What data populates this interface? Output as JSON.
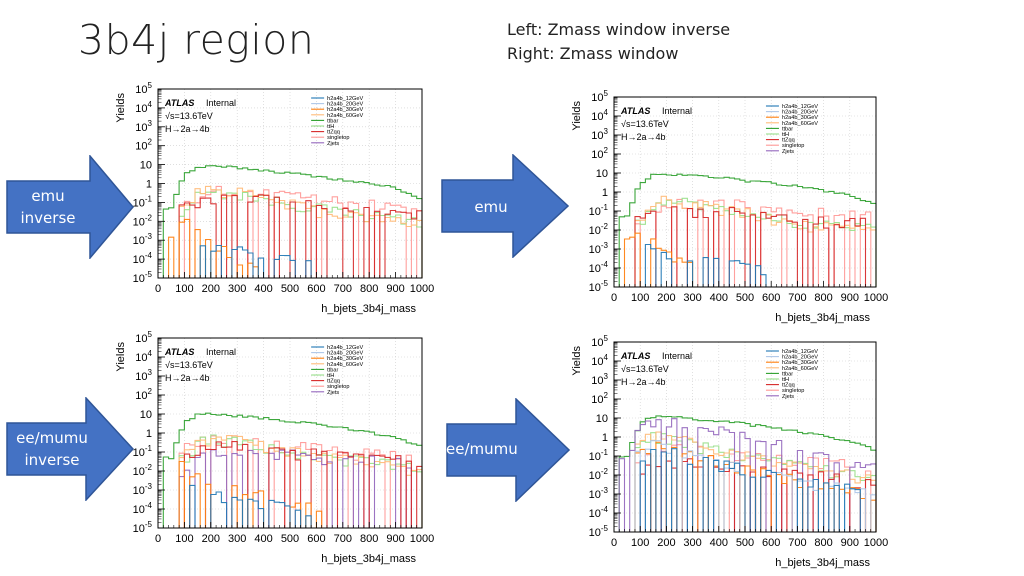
{
  "slide": {
    "title": "3b4j region",
    "note_line1": "Left: Zmass window inverse",
    "note_line2": "Right: Zmass window"
  },
  "arrows": [
    {
      "line1": "emu",
      "line2": "inverse"
    },
    {
      "line1": "emu",
      "line2": ""
    },
    {
      "line1": "ee/mumu",
      "line2": "inverse"
    },
    {
      "line1": "ee/mumu",
      "line2": ""
    }
  ],
  "colors": {
    "arrow_fill": "#4472c4",
    "arrow_stroke": "#2f5597",
    "h2a4b_12GeV": "#1f77b4",
    "h2a4b_20GeV": "#aec7e8",
    "h2a4b_30GeV": "#ff7f0e",
    "h2a4b_60GeV": "#ffbb78",
    "ttbar": "#2ca02c",
    "ttH": "#98df8a",
    "ttZqq": "#d62728",
    "singletop": "#ff9896",
    "Zjets": "#9467bd"
  },
  "chart_data": [
    {
      "type": "line",
      "panel": "top-left",
      "xlabel": "h_bjets_3b4j_mass",
      "ylabel": "Yields",
      "xlim": [
        0,
        1000
      ],
      "ylim": [
        1e-05,
        100000
      ],
      "log_y": true,
      "x_ticks": [
        "0",
        "100",
        "200",
        "300",
        "400",
        "500",
        "600",
        "700",
        "800",
        "900",
        "1000"
      ],
      "y_ticks": [
        "10^{-5}",
        "10^{-4}",
        "10^{-3}",
        "10^{-2}",
        "10^{-1}",
        "1",
        "10",
        "10^{2}",
        "10^{3}",
        "10^{4}",
        "10^{5}"
      ],
      "atlas_label": "ATLAS",
      "atlas_tag": "Internal",
      "energy": "√s=13.6TeV",
      "process": "H→2a→4b",
      "legend_position": "top-right",
      "legend": [
        "h2a4b_12GeV",
        "h2a4b_20GeV",
        "h2a4b_30GeV",
        "h2a4b_60GeV",
        "ttbar",
        "ttH",
        "ttZqq",
        "singletop",
        "Zjets"
      ],
      "series": [
        {
          "name": "ttbar",
          "x": [
            50,
            100,
            150,
            200,
            300,
            400,
            500,
            600,
            700,
            800,
            900,
            1000
          ],
          "y": [
            0.05,
            3,
            7,
            8,
            7,
            5,
            3.5,
            2.5,
            1.5,
            1.0,
            0.6,
            0.15
          ]
        },
        {
          "name": "h2a4b_60GeV",
          "x": [
            100,
            150,
            200,
            300,
            400,
            500,
            600,
            700,
            800,
            900,
            1000
          ],
          "y": [
            0.05,
            0.3,
            0.5,
            0.4,
            0.15,
            0.08,
            0.04,
            0.02,
            0.015,
            0.01,
            0.008
          ]
        },
        {
          "name": "ttH",
          "x": [
            100,
            150,
            200,
            300,
            400,
            500,
            600,
            700,
            800,
            900,
            1000
          ],
          "y": [
            0.03,
            0.2,
            0.4,
            0.3,
            0.15,
            0.08,
            0.05,
            0.03,
            0.02,
            0.015,
            0.01
          ]
        },
        {
          "name": "ttZqq",
          "x": [
            100,
            200,
            300,
            400,
            500,
            600,
            700,
            800,
            900,
            1000
          ],
          "y": [
            0.05,
            0.2,
            0.2,
            0.15,
            0.1,
            0.06,
            0.05,
            0.04,
            0.03,
            0.02
          ]
        },
        {
          "name": "singletop",
          "x": [
            100,
            200,
            300,
            400,
            500,
            600,
            700,
            800,
            900,
            1000
          ],
          "y": [
            0.1,
            0.4,
            0.4,
            0.3,
            0.2,
            0.15,
            0.1,
            0.08,
            0.06,
            0.05
          ]
        },
        {
          "name": "h2a4b_30GeV",
          "x": [
            60,
            100,
            150,
            200,
            250,
            300,
            350
          ],
          "y": [
            0.002,
            0.01,
            0.003,
            0.001,
            0.0003,
            0.0001,
            5e-05
          ]
        },
        {
          "name": "h2a4b_12GeV",
          "x": [
            150,
            250,
            350,
            450,
            550
          ],
          "y": [
            0.0005,
            0.0005,
            0.0002,
            0.0001,
            0.0001
          ]
        }
      ]
    },
    {
      "type": "line",
      "panel": "top-right",
      "xlabel": "h_bjets_3b4j_mass",
      "ylabel": "Yields",
      "xlim": [
        0,
        1000
      ],
      "ylim": [
        1e-05,
        100000
      ],
      "log_y": true,
      "x_ticks": [
        "0",
        "100",
        "200",
        "300",
        "400",
        "500",
        "600",
        "700",
        "800",
        "900",
        "1000"
      ],
      "y_ticks": [
        "10^{-5}",
        "10^{-4}",
        "10^{-3}",
        "10^{-2}",
        "10^{-1}",
        "1",
        "10",
        "10^{2}",
        "10^{3}",
        "10^{4}",
        "10^{5}"
      ],
      "atlas_label": "ATLAS",
      "atlas_tag": "Internal",
      "energy": "√s=13.6TeV",
      "process": "H→2a→4b",
      "legend_position": "top-right",
      "legend": [
        "h2a4b_12GeV",
        "h2a4b_20GeV",
        "h2a4b_30GeV",
        "h2a4b_60GeV",
        "ttbar",
        "ttH",
        "ttZqq",
        "singletop",
        "Zjets"
      ],
      "series": [
        {
          "name": "ttbar",
          "x": [
            50,
            100,
            150,
            200,
            300,
            400,
            500,
            600,
            700,
            800,
            900,
            1000
          ],
          "y": [
            0.05,
            3,
            8,
            9,
            8,
            6,
            4,
            3,
            2,
            1.2,
            0.7,
            0.2
          ]
        },
        {
          "name": "h2a4b_60GeV",
          "x": [
            100,
            150,
            200,
            300,
            400,
            500,
            600,
            700,
            800,
            900,
            1000
          ],
          "y": [
            0.02,
            0.2,
            0.4,
            0.3,
            0.15,
            0.08,
            0.04,
            0.02,
            0.015,
            0.01,
            0.008
          ]
        },
        {
          "name": "ttH",
          "x": [
            100,
            150,
            200,
            300,
            400,
            500,
            600,
            700,
            800,
            900,
            1000
          ],
          "y": [
            0.02,
            0.15,
            0.3,
            0.25,
            0.12,
            0.07,
            0.04,
            0.03,
            0.02,
            0.015,
            0.01
          ]
        },
        {
          "name": "ttZqq",
          "x": [
            100,
            200,
            300,
            400,
            500,
            600,
            700,
            800,
            900,
            1000
          ],
          "y": [
            0.03,
            0.1,
            0.1,
            0.1,
            0.08,
            0.05,
            0.04,
            0.03,
            0.03,
            0.02
          ]
        },
        {
          "name": "singletop",
          "x": [
            100,
            200,
            300,
            400,
            500,
            600,
            700,
            800,
            900,
            1000
          ],
          "y": [
            0.05,
            0.3,
            0.3,
            0.25,
            0.2,
            0.15,
            0.1,
            0.08,
            0.06,
            0.05
          ]
        },
        {
          "name": "h2a4b_30GeV",
          "x": [
            60,
            100,
            150,
            200,
            250,
            300
          ],
          "y": [
            0.002,
            0.01,
            0.002,
            0.0005,
            0.0002,
            0.0001
          ]
        },
        {
          "name": "h2a4b_12GeV",
          "x": [
            150,
            300,
            450,
            550
          ],
          "y": [
            0.001,
            0.0003,
            0.0002,
            0.0001
          ]
        }
      ]
    },
    {
      "type": "line",
      "panel": "bottom-left",
      "xlabel": "h_bjets_3b4j_mass",
      "ylabel": "Yields",
      "xlim": [
        0,
        1000
      ],
      "ylim": [
        1e-05,
        100000
      ],
      "log_y": true,
      "x_ticks": [
        "0",
        "100",
        "200",
        "300",
        "400",
        "500",
        "600",
        "700",
        "800",
        "900",
        "1000"
      ],
      "y_ticks": [
        "10^{-5}",
        "10^{-4}",
        "10^{-3}",
        "10^{-2}",
        "10^{-1}",
        "1",
        "10",
        "10^{2}",
        "10^{3}",
        "10^{4}",
        "10^{5}"
      ],
      "atlas_label": "ATLAS",
      "atlas_tag": "Internal",
      "energy": "√s=13.6TeV",
      "process": "H→2a→4b",
      "legend_position": "top-right",
      "legend": [
        "h2a4b_12GeV",
        "h2a4b_20GeV",
        "h2a4b_30GeV",
        "h2a4b_60GeV",
        "ttbar",
        "ttH",
        "ttZqq",
        "singletop",
        "Zjets"
      ],
      "series": [
        {
          "name": "ttbar",
          "x": [
            50,
            100,
            150,
            200,
            300,
            400,
            500,
            600,
            700,
            800,
            900,
            1000
          ],
          "y": [
            0.05,
            4,
            9,
            10,
            8,
            6,
            4,
            3,
            1.8,
            1.1,
            0.6,
            0.2
          ]
        },
        {
          "name": "h2a4b_60GeV",
          "x": [
            100,
            150,
            200,
            300,
            400,
            500,
            600,
            700,
            800,
            900,
            1000
          ],
          "y": [
            0.1,
            0.3,
            0.5,
            0.4,
            0.2,
            0.1,
            0.06,
            0.04,
            0.03,
            0.02,
            0.01
          ]
        },
        {
          "name": "ttH",
          "x": [
            100,
            150,
            200,
            300,
            400,
            500,
            600,
            700,
            800,
            900,
            1000
          ],
          "y": [
            0.05,
            0.3,
            0.5,
            0.4,
            0.2,
            0.1,
            0.06,
            0.04,
            0.03,
            0.02,
            0.01
          ]
        },
        {
          "name": "Zjets",
          "x": [
            100,
            200,
            300,
            400,
            500,
            600,
            700,
            800,
            900,
            1000
          ],
          "y": [
            0.01,
            0.1,
            0.05,
            0.1,
            0.08,
            0.05,
            0.05,
            0.04,
            0.03,
            0.01
          ]
        },
        {
          "name": "ttZqq",
          "x": [
            100,
            200,
            300,
            400,
            500,
            600,
            700,
            800,
            900,
            1000
          ],
          "y": [
            0.05,
            0.2,
            0.2,
            0.15,
            0.1,
            0.08,
            0.06,
            0.05,
            0.04,
            0.03
          ]
        },
        {
          "name": "singletop",
          "x": [
            100,
            200,
            300,
            400,
            500,
            600,
            700,
            800,
            900,
            1000
          ],
          "y": [
            0.2,
            0.5,
            0.4,
            0.3,
            0.2,
            0.15,
            0.1,
            0.08,
            0.06,
            0.05
          ]
        },
        {
          "name": "h2a4b_30GeV",
          "x": [
            100,
            150,
            200,
            300,
            400,
            500,
            600
          ],
          "y": [
            0.02,
            0.005,
            0.002,
            0.001,
            0.0005,
            0.0003,
            0.0001
          ]
        },
        {
          "name": "h2a4b_12GeV",
          "x": [
            150,
            250,
            350,
            450,
            550
          ],
          "y": [
            0.001,
            0.0005,
            0.0003,
            0.0002,
            0.0001
          ]
        }
      ]
    },
    {
      "type": "line",
      "panel": "bottom-right",
      "xlabel": "h_bjets_3b4j_mass",
      "ylabel": "Yields",
      "xlim": [
        0,
        1000
      ],
      "ylim": [
        1e-05,
        100000
      ],
      "log_y": true,
      "x_ticks": [
        "0",
        "100",
        "200",
        "300",
        "400",
        "500",
        "600",
        "700",
        "800",
        "900",
        "1000"
      ],
      "y_ticks": [
        "10^{-5}",
        "10^{-4}",
        "10^{-3}",
        "10^{-2}",
        "10^{-1}",
        "1",
        "10",
        "10^{2}",
        "10^{3}",
        "10^{4}",
        "10^{5}"
      ],
      "atlas_label": "ATLAS",
      "atlas_tag": "Internal",
      "energy": "√s=13.6TeV",
      "process": "H→2a→4b",
      "legend_position": "top-right",
      "legend": [
        "h2a4b_12GeV",
        "h2a4b_20GeV",
        "h2a4b_30GeV",
        "h2a4b_60GeV",
        "ttbar",
        "ttH",
        "ttZqq",
        "singletop",
        "Zjets"
      ],
      "series": [
        {
          "name": "ttbar",
          "x": [
            50,
            100,
            150,
            200,
            300,
            400,
            500,
            600,
            700,
            800,
            900,
            1000
          ],
          "y": [
            0.1,
            5,
            12,
            12,
            9,
            7,
            5,
            3,
            2,
            1.2,
            0.6,
            0.2
          ]
        },
        {
          "name": "Zjets",
          "x": [
            50,
            100,
            150,
            200,
            300,
            400,
            500,
            600,
            700,
            800,
            900,
            1000
          ],
          "y": [
            0.1,
            3,
            7,
            6,
            4,
            2,
            1,
            0.5,
            0.3,
            0.1,
            0.05,
            0.02
          ]
        },
        {
          "name": "h2a4b_60GeV",
          "x": [
            100,
            150,
            200,
            300,
            400,
            500,
            600,
            700,
            800,
            900,
            1000
          ],
          "y": [
            0.5,
            1.5,
            1.2,
            0.5,
            0.2,
            0.1,
            0.05,
            0.03,
            0.02,
            0.01,
            0.005
          ]
        },
        {
          "name": "ttH",
          "x": [
            100,
            150,
            200,
            300,
            400,
            500,
            600,
            700,
            800,
            900,
            1000
          ],
          "y": [
            0.3,
            1.0,
            0.8,
            0.4,
            0.2,
            0.1,
            0.05,
            0.03,
            0.02,
            0.01,
            0.005
          ]
        },
        {
          "name": "h2a4b_30GeV",
          "x": [
            100,
            150,
            200,
            300,
            400,
            500,
            600,
            700,
            800,
            900,
            1000
          ],
          "y": [
            0.1,
            0.5,
            0.3,
            0.1,
            0.05,
            0.02,
            0.01,
            0.005,
            0.003,
            0.002,
            0.001
          ]
        },
        {
          "name": "h2a4b_20GeV",
          "x": [
            100,
            150,
            200,
            300,
            400,
            500,
            600,
            700,
            800,
            900,
            1000
          ],
          "y": [
            0.1,
            0.4,
            0.3,
            0.1,
            0.05,
            0.02,
            0.01,
            0.005,
            0.003,
            0.002,
            0.001
          ]
        },
        {
          "name": "h2a4b_12GeV",
          "x": [
            100,
            150,
            200,
            300,
            400,
            500,
            600,
            700,
            800,
            900,
            1000
          ],
          "y": [
            0.05,
            0.3,
            0.2,
            0.08,
            0.04,
            0.02,
            0.01,
            0.005,
            0.003,
            0.002,
            0.001
          ]
        },
        {
          "name": "ttZqq",
          "x": [
            100,
            200,
            300,
            400,
            500,
            600,
            700,
            800,
            900,
            1000
          ],
          "y": [
            0.02,
            0.05,
            0.05,
            0.03,
            0.02,
            0.015,
            0.01,
            0.01,
            0.005,
            0.003
          ]
        },
        {
          "name": "singletop",
          "x": [
            100,
            200,
            300,
            400,
            500,
            600,
            700,
            800,
            900,
            1000
          ],
          "y": [
            0.1,
            0.3,
            0.3,
            0.2,
            0.1,
            0.08,
            0.06,
            0.05,
            0.04,
            0.03
          ]
        }
      ]
    }
  ]
}
